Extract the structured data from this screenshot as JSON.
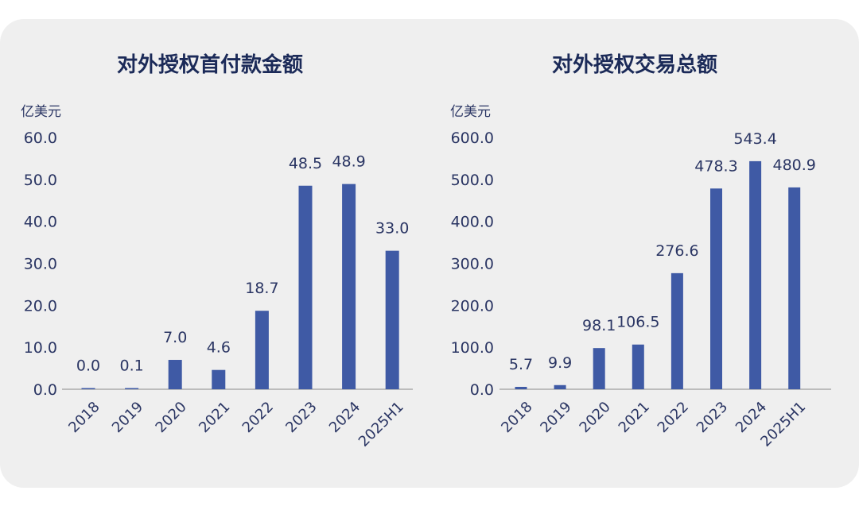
{
  "charts": {
    "colors": {
      "bar": "#3f5aa5",
      "axis": "#8a8a8a",
      "text": "#2a3563"
    }
  },
  "chart_data": [
    {
      "type": "bar",
      "title": "对外授权首付款金额",
      "ylabel": "亿美元",
      "categories": [
        "2018",
        "2019",
        "2020",
        "2021",
        "2022",
        "2023",
        "2024",
        "2025H1"
      ],
      "values": [
        0.0,
        0.1,
        7.0,
        4.6,
        18.7,
        48.5,
        48.9,
        33.0
      ],
      "data_labels": [
        "0.0",
        "0.1",
        "7.0",
        "4.6",
        "18.7",
        "48.5",
        "48.9",
        "33.0"
      ],
      "yticks": [
        "0.0",
        "10.0",
        "20.0",
        "30.0",
        "40.0",
        "50.0",
        "60.0"
      ],
      "ylim": [
        0,
        60
      ],
      "grid": false
    },
    {
      "type": "bar",
      "title": "对外授权交易总额",
      "ylabel": "亿美元",
      "categories": [
        "2018",
        "2019",
        "2020",
        "2021",
        "2022",
        "2023",
        "2024",
        "2025H1"
      ],
      "values": [
        5.7,
        9.9,
        98.1,
        106.5,
        276.6,
        478.3,
        543.4,
        480.9
      ],
      "data_labels": [
        "5.7",
        "9.9",
        "98.1",
        "106.5",
        "276.6",
        "478.3",
        "543.4",
        "480.9"
      ],
      "yticks": [
        "0.0",
        "100.0",
        "200.0",
        "300.0",
        "400.0",
        "500.0",
        "600.0"
      ],
      "ylim": [
        0,
        600
      ],
      "grid": false
    }
  ]
}
